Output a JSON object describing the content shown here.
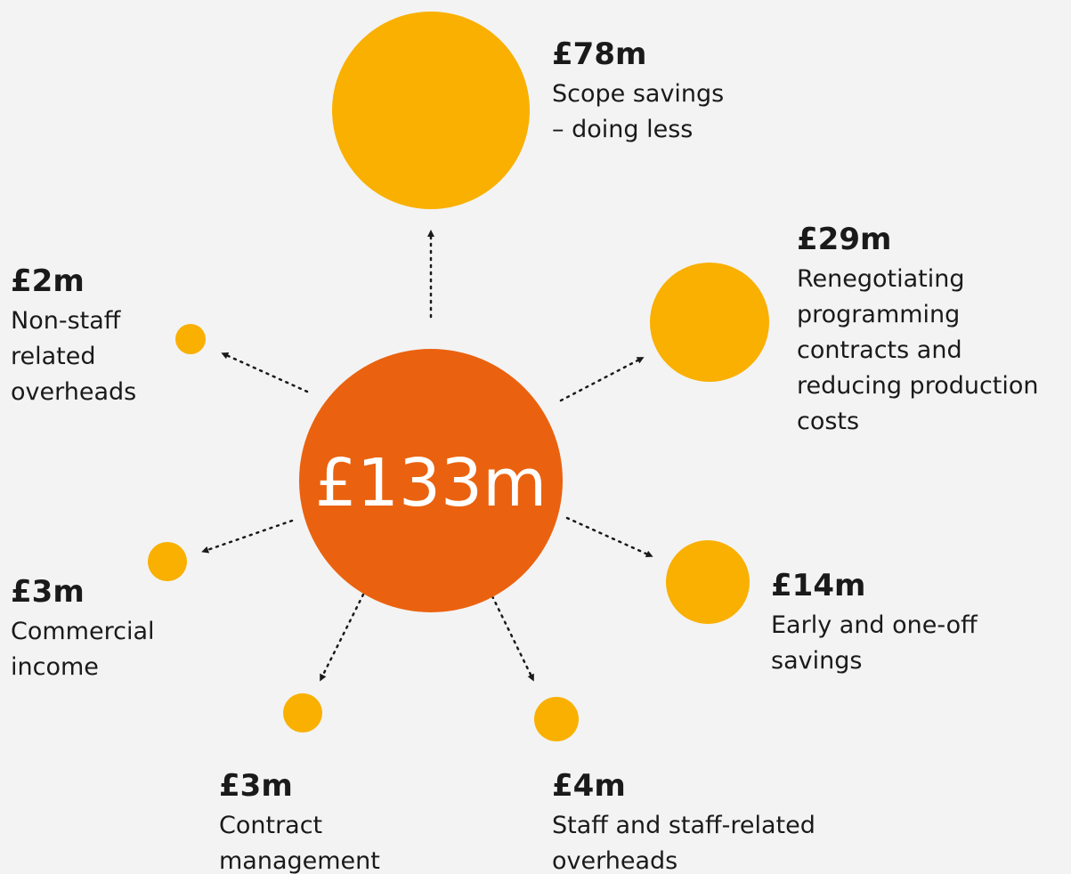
{
  "center": {
    "label": "£133m"
  },
  "nodes": [
    {
      "amount": "£78m",
      "lines": [
        "Scope savings",
        "– doing less"
      ]
    },
    {
      "amount": "£29m",
      "lines": [
        "Renegotiating",
        "programming",
        "contracts and",
        "reducing production",
        "costs"
      ]
    },
    {
      "amount": "£14m",
      "lines": [
        "Early and one-off",
        "savings"
      ]
    },
    {
      "amount": "£4m",
      "lines": [
        "Staff and staff-related",
        "overheads"
      ]
    },
    {
      "amount": "£3m",
      "lines": [
        "Contract",
        "management"
      ]
    },
    {
      "amount": "£3m",
      "lines": [
        "Commercial",
        "income"
      ]
    },
    {
      "amount": "£2m",
      "lines": [
        "Non-staff",
        "related",
        "overheads"
      ]
    }
  ]
}
